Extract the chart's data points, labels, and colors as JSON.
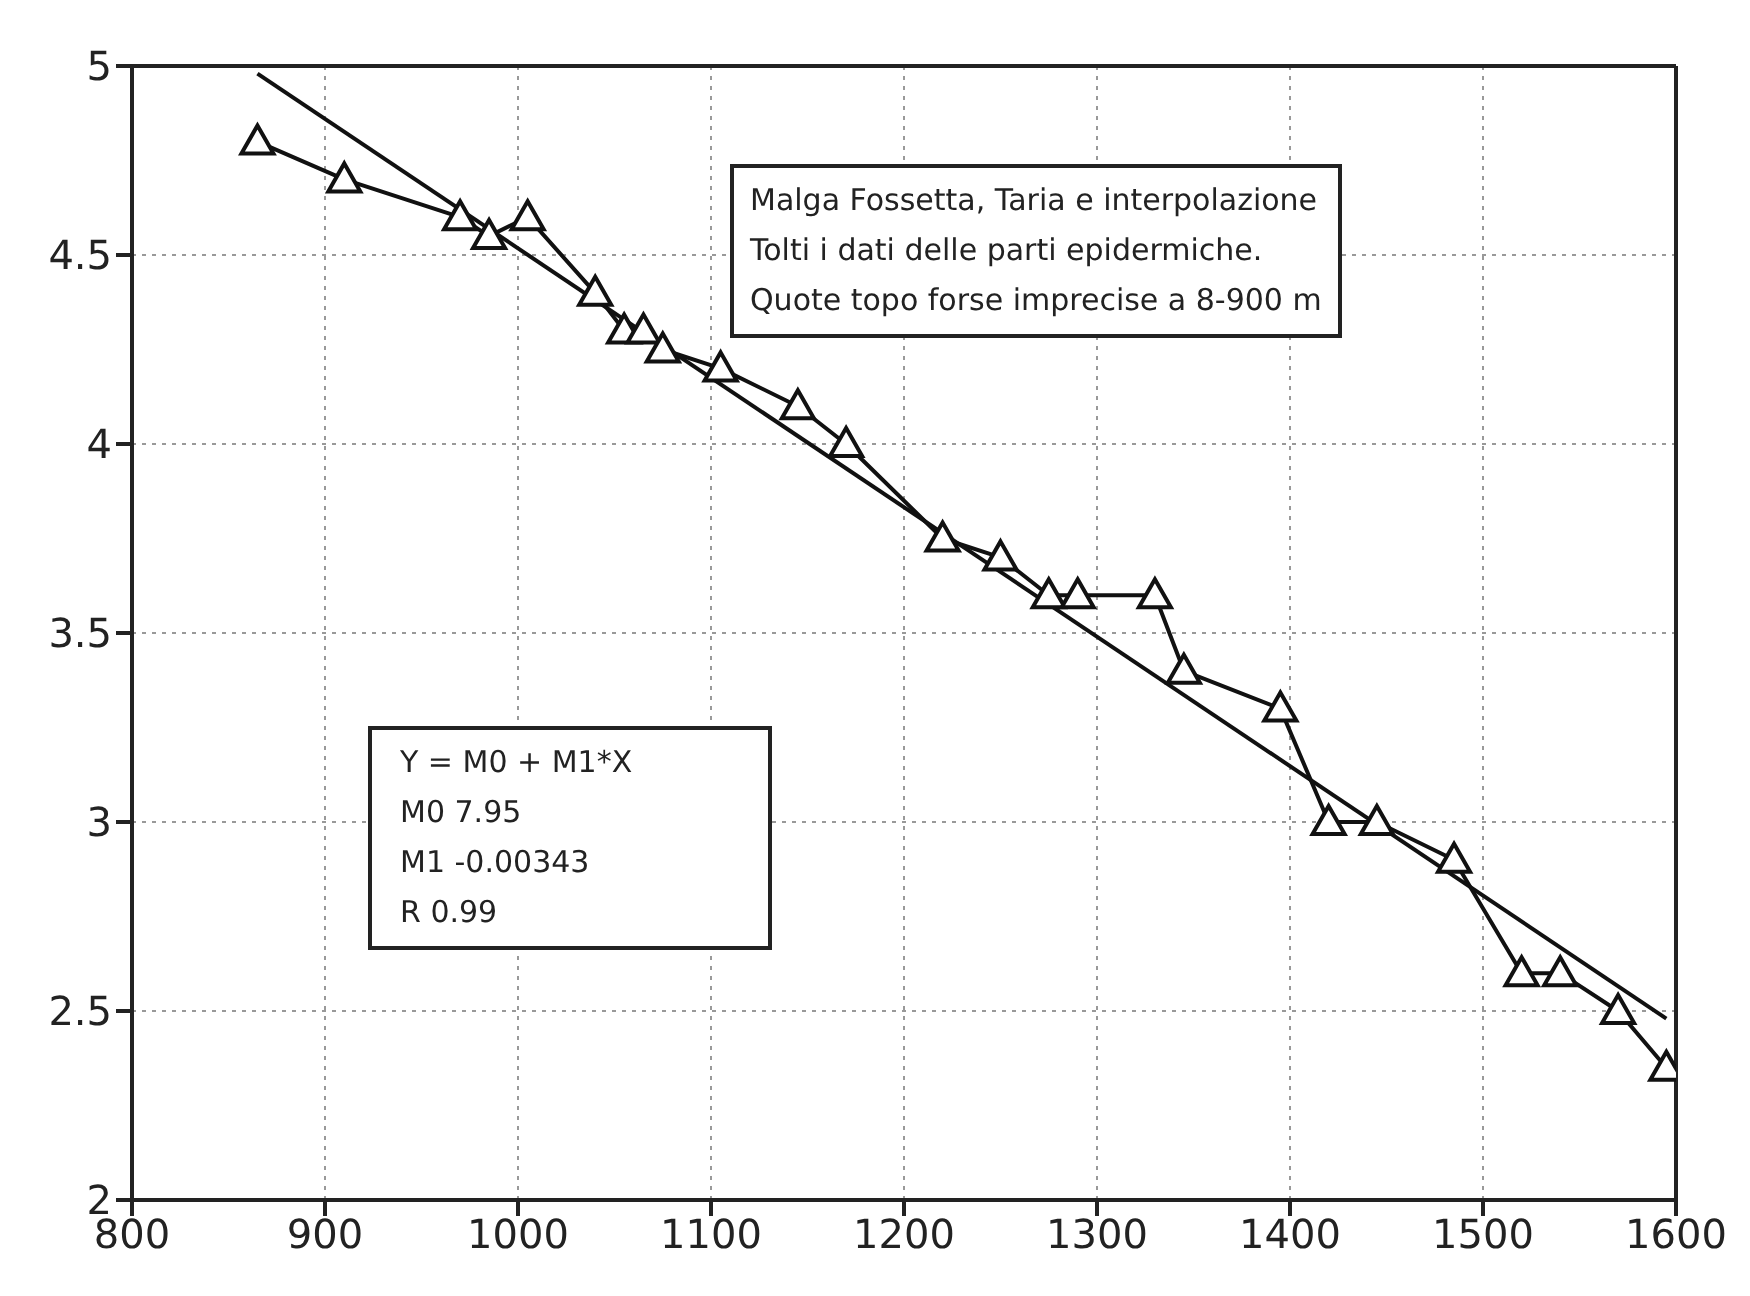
{
  "chart_data": {
    "type": "line",
    "series": [
      {
        "marker": "triangle",
        "color": "#111111",
        "x": [
          865,
          910,
          970,
          985,
          1005,
          1040,
          1055,
          1065,
          1075,
          1105,
          1145,
          1170,
          1220,
          1250,
          1275,
          1290,
          1330,
          1345,
          1395,
          1420,
          1445,
          1485,
          1520,
          1540,
          1570,
          1595
        ],
        "values": [
          4.8,
          4.7,
          4.6,
          4.55,
          4.6,
          4.4,
          4.3,
          4.3,
          4.25,
          4.2,
          4.1,
          4.0,
          3.75,
          3.7,
          3.6,
          3.6,
          3.6,
          3.4,
          3.3,
          3.0,
          3.0,
          2.9,
          2.6,
          2.6,
          2.5,
          2.35
        ]
      },
      {
        "marker": "none",
        "color": "#111111",
        "x": [
          865,
          1595
        ],
        "values": [
          4.98,
          2.48
        ]
      }
    ],
    "xlim": [
      800,
      1600
    ],
    "xticks": [
      800,
      900,
      1000,
      1100,
      1200,
      1300,
      1400,
      1500,
      1600
    ],
    "ylim": [
      2,
      5
    ],
    "yticks": [
      2,
      2.5,
      3,
      3.5,
      4,
      4.5,
      5
    ],
    "grid": true,
    "line_style": "solid",
    "annotations": [
      "Malga Fossetta, Taria e interpolazione",
      "Tolti i dati delle parti epidermiche.",
      "Quote topo forse imprecise a 8-900 m",
      "Y = M0 + M1*X",
      "M0 7.95",
      "M1 -0.00343",
      "R 0.99"
    ]
  }
}
